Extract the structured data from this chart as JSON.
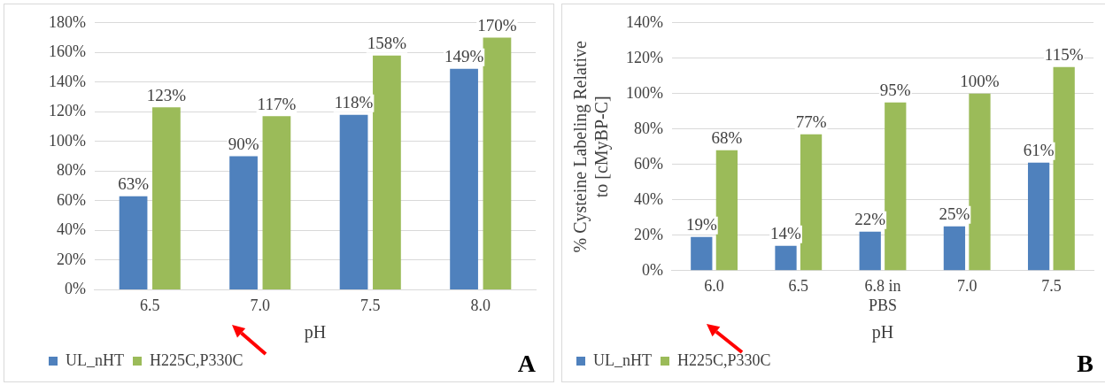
{
  "chart_data": [
    {
      "type": "bar",
      "xlabel": "pH",
      "categories": [
        "6.5",
        "7.0",
        "7.5",
        "8.0"
      ],
      "series": [
        {
          "name": "UL_nHT",
          "color": "#4f81bd",
          "values": [
            63,
            90,
            118,
            149
          ],
          "value_labels": [
            "63%",
            "90%",
            "118%",
            "149%"
          ]
        },
        {
          "name": "H225C,P330C",
          "color": "#9bbb59",
          "values": [
            123,
            117,
            158,
            170
          ],
          "value_labels": [
            "123%",
            "117%",
            "158%",
            "170%"
          ]
        }
      ],
      "ylim": [
        0,
        180
      ],
      "yticks": [
        {
          "value": 0,
          "label": "0%"
        },
        {
          "value": 20,
          "label": "20%"
        },
        {
          "value": 40,
          "label": "40%"
        },
        {
          "value": 60,
          "label": "60%"
        },
        {
          "value": 80,
          "label": "80%"
        },
        {
          "value": 100,
          "label": "100%"
        },
        {
          "value": 120,
          "label": "120%"
        },
        {
          "value": 140,
          "label": "140%"
        },
        {
          "value": 160,
          "label": "160%"
        },
        {
          "value": 180,
          "label": "180%"
        }
      ],
      "grid": "y",
      "legend": "bottom",
      "annotations": [
        "A"
      ]
    },
    {
      "type": "bar",
      "xlabel": "pH",
      "ylabel": "% Cysteine Labeling Relative to [cMyBP-C]",
      "categories": [
        "6.0",
        "6.5",
        "6.8 in PBS",
        "7.0",
        "7.5"
      ],
      "series": [
        {
          "name": "UL_nHT",
          "color": "#4f81bd",
          "values": [
            19,
            14,
            22,
            25,
            61
          ],
          "value_labels": [
            "19%",
            "14%",
            "22%",
            "25%",
            "61%"
          ]
        },
        {
          "name": "H225C,P330C",
          "color": "#9bbb59",
          "values": [
            68,
            77,
            95,
            100,
            115
          ],
          "value_labels": [
            "68%",
            "77%",
            "95%",
            "100%",
            "115%"
          ]
        }
      ],
      "ylim": [
        0,
        140
      ],
      "yticks": [
        {
          "value": 0,
          "label": "0%"
        },
        {
          "value": 20,
          "label": "20%"
        },
        {
          "value": 40,
          "label": "40%"
        },
        {
          "value": 60,
          "label": "60%"
        },
        {
          "value": 80,
          "label": "80%"
        },
        {
          "value": 100,
          "label": "100%"
        },
        {
          "value": 120,
          "label": "120%"
        },
        {
          "value": 140,
          "label": "140%"
        }
      ],
      "grid": "y",
      "legend": "bottom",
      "annotations": [
        "B"
      ]
    }
  ]
}
